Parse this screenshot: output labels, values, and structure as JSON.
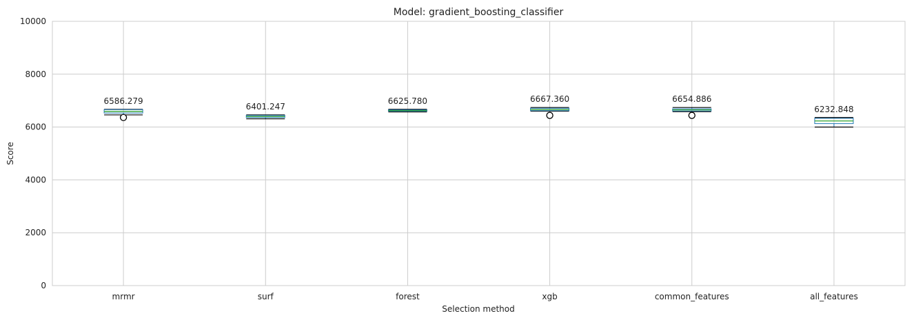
{
  "chart_data": {
    "type": "box",
    "title": "Model: gradient_boosting_classifier",
    "xlabel": "Selection method",
    "ylabel": "Score",
    "ylim": [
      0,
      10000
    ],
    "yticks": [
      0,
      2000,
      4000,
      6000,
      8000,
      10000
    ],
    "grid": true,
    "categories": [
      "mrmr",
      "surf",
      "forest",
      "xgb",
      "common_features",
      "all_features"
    ],
    "boxes": [
      {
        "category": "mrmr",
        "whisker_low": 6460,
        "q1": 6530,
        "median": 6590,
        "q3": 6660,
        "whisker_high": 6670,
        "outliers": [
          6360
        ],
        "label": "6586.279"
      },
      {
        "category": "surf",
        "whisker_low": 6310,
        "q1": 6360,
        "median": 6400,
        "q3": 6440,
        "whisker_high": 6460,
        "outliers": [],
        "label": "6401.247"
      },
      {
        "category": "forest",
        "whisker_low": 6570,
        "q1": 6600,
        "median": 6625,
        "q3": 6650,
        "whisker_high": 6670,
        "outliers": [],
        "label": "6625.780"
      },
      {
        "category": "xgb",
        "whisker_low": 6600,
        "q1": 6620,
        "median": 6660,
        "q3": 6710,
        "whisker_high": 6740,
        "outliers": [
          6440
        ],
        "label": "6667.360"
      },
      {
        "category": "common_features",
        "whisker_low": 6580,
        "q1": 6610,
        "median": 6650,
        "q3": 6690,
        "whisker_high": 6740,
        "outliers": [
          6440
        ],
        "label": "6654.886"
      },
      {
        "category": "all_features",
        "whisker_low": 6000,
        "q1": 6130,
        "median": 6230,
        "q3": 6330,
        "whisker_high": 6360,
        "outliers": [],
        "label": "6232.848"
      }
    ]
  }
}
